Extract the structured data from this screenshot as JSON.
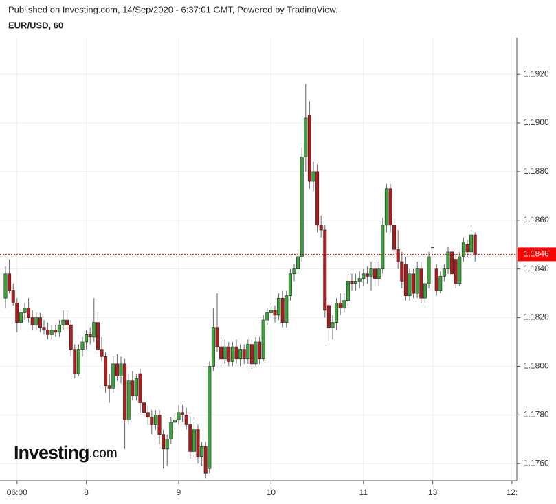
{
  "chart_data": {
    "type": "candlestick",
    "source": "Published on Investing.com, 14/Sep/2020 - 6:37:01 GMT, Powered by TradingView.",
    "title": "EUR/USD, 60",
    "watermark": [
      "Investing",
      ".com"
    ],
    "up_color": "#3aa63a",
    "down_color": "#b01c1c",
    "grid": true,
    "xlim": [
      -1.43,
      132.86
    ],
    "xticks": [
      {
        "value": 3,
        "label": "06:00"
      },
      {
        "value": 21,
        "label": "8"
      },
      {
        "value": 45,
        "label": "9"
      },
      {
        "value": 69,
        "label": "10"
      },
      {
        "value": 93,
        "label": "11"
      },
      {
        "value": 111,
        "label": "13"
      },
      {
        "value": 131.6,
        "label": "12:"
      }
    ],
    "ylim": [
      1.1753,
      1.1935
    ],
    "yticks": [
      {
        "value": 1.176,
        "label": "1.1760"
      },
      {
        "value": 1.178,
        "label": "1.1780"
      },
      {
        "value": 1.18,
        "label": "1.1800"
      },
      {
        "value": 1.182,
        "label": "1.1820"
      },
      {
        "value": 1.184,
        "label": "1.1840"
      },
      {
        "value": 1.186,
        "label": "1.1860"
      },
      {
        "value": 1.188,
        "label": "1.1880"
      },
      {
        "value": 1.19,
        "label": "1.1900"
      },
      {
        "value": 1.192,
        "label": "1.1920"
      }
    ],
    "last_price": {
      "value": 1.1846,
      "label": "1.1846",
      "color": "#ff0000"
    },
    "ohlc": [
      [
        1.1828,
        1.1841,
        1.1824,
        1.1838
      ],
      [
        1.1838,
        1.1844,
        1.183,
        1.1831
      ],
      [
        1.1831,
        1.1834,
        1.1825,
        1.1826
      ],
      [
        1.1826,
        1.1828,
        1.1814,
        1.1818
      ],
      [
        1.1818,
        1.1824,
        1.1815,
        1.1822
      ],
      [
        1.1822,
        1.1826,
        1.1819,
        1.1824
      ],
      [
        1.1824,
        1.1828,
        1.1818,
        1.182
      ],
      [
        1.182,
        1.1823,
        1.1815,
        1.1817
      ],
      [
        1.1817,
        1.1822,
        1.1815,
        1.182
      ],
      [
        1.182,
        1.1822,
        1.1814,
        1.1816
      ],
      [
        1.1816,
        1.1819,
        1.1813,
        1.1815
      ],
      [
        1.1815,
        1.1818,
        1.1811,
        1.1813
      ],
      [
        1.1813,
        1.1817,
        1.1811,
        1.1815
      ],
      [
        1.1815,
        1.1817,
        1.1812,
        1.1814
      ],
      [
        1.1814,
        1.1819,
        1.1812,
        1.1817
      ],
      [
        1.1817,
        1.1823,
        1.1815,
        1.1819
      ],
      [
        1.1819,
        1.1823,
        1.1815,
        1.1817
      ],
      [
        1.1817,
        1.1819,
        1.1804,
        1.1807
      ],
      [
        1.1807,
        1.1809,
        1.1795,
        1.1797
      ],
      [
        1.1797,
        1.1809,
        1.1796,
        1.1807
      ],
      [
        1.1807,
        1.1812,
        1.1804,
        1.181
      ],
      [
        1.181,
        1.1815,
        1.1807,
        1.1813
      ],
      [
        1.1813,
        1.1816,
        1.1809,
        1.1812
      ],
      [
        1.1812,
        1.1828,
        1.181,
        1.1818
      ],
      [
        1.1818,
        1.1822,
        1.1805,
        1.1807
      ],
      [
        1.1807,
        1.1812,
        1.1802,
        1.1804
      ],
      [
        1.1804,
        1.1806,
        1.1789,
        1.1792
      ],
      [
        1.1792,
        1.1797,
        1.1785,
        1.1791
      ],
      [
        1.1791,
        1.1804,
        1.1789,
        1.1801
      ],
      [
        1.1801,
        1.1805,
        1.1794,
        1.1796
      ],
      [
        1.1796,
        1.1804,
        1.1793,
        1.1801
      ],
      [
        1.1801,
        1.1803,
        1.1766,
        1.1778
      ],
      [
        1.1778,
        1.1797,
        1.1776,
        1.1794
      ],
      [
        1.1794,
        1.1798,
        1.1786,
        1.1788
      ],
      [
        1.1788,
        1.1797,
        1.1786,
        1.1795
      ],
      [
        1.1797,
        1.1799,
        1.1781,
        1.1785
      ],
      [
        1.1785,
        1.1788,
        1.1779,
        1.1781
      ],
      [
        1.1781,
        1.1784,
        1.1776,
        1.1779
      ],
      [
        1.1779,
        1.1782,
        1.1772,
        1.1776
      ],
      [
        1.1776,
        1.1782,
        1.1774,
        1.178
      ],
      [
        1.178,
        1.1782,
        1.1768,
        1.1772
      ],
      [
        1.1772,
        1.1774,
        1.1758,
        1.1766
      ],
      [
        1.1766,
        1.1772,
        1.1759,
        1.177
      ],
      [
        1.177,
        1.1779,
        1.1768,
        1.1777
      ],
      [
        1.1777,
        1.1781,
        1.1774,
        1.1778
      ],
      [
        1.1778,
        1.1784,
        1.1776,
        1.1781
      ],
      [
        1.1781,
        1.1784,
        1.1777,
        1.178
      ],
      [
        1.178,
        1.1783,
        1.1774,
        1.1776
      ],
      [
        1.1776,
        1.1779,
        1.1762,
        1.1765
      ],
      [
        1.1765,
        1.1777,
        1.1763,
        1.1774
      ],
      [
        1.1774,
        1.1776,
        1.176,
        1.1763
      ],
      [
        1.1763,
        1.1769,
        1.1759,
        1.1767
      ],
      [
        1.1767,
        1.1769,
        1.1754,
        1.1756
      ],
      [
        1.1758,
        1.1802,
        1.1756,
        1.18
      ],
      [
        1.18,
        1.1824,
        1.1798,
        1.1816
      ],
      [
        1.1816,
        1.183,
        1.1806,
        1.1808
      ],
      [
        1.1808,
        1.1812,
        1.18,
        1.1803
      ],
      [
        1.1803,
        1.1811,
        1.1801,
        1.1808
      ],
      [
        1.1808,
        1.181,
        1.18,
        1.1802
      ],
      [
        1.1802,
        1.181,
        1.18,
        1.1808
      ],
      [
        1.1808,
        1.1811,
        1.1801,
        1.1803
      ],
      [
        1.1803,
        1.1809,
        1.18,
        1.1807
      ],
      [
        1.1807,
        1.1809,
        1.1801,
        1.1803
      ],
      [
        1.1803,
        1.1811,
        1.1801,
        1.1809
      ],
      [
        1.1809,
        1.1811,
        1.1799,
        1.1801
      ],
      [
        1.1801,
        1.1812,
        1.18,
        1.181
      ],
      [
        1.181,
        1.1812,
        1.1801,
        1.1803
      ],
      [
        1.1803,
        1.1821,
        1.1802,
        1.1819
      ],
      [
        1.1819,
        1.1824,
        1.1817,
        1.1822
      ],
      [
        1.1822,
        1.1826,
        1.182,
        1.1823
      ],
      [
        1.1823,
        1.1825,
        1.1818,
        1.1821
      ],
      [
        1.1821,
        1.183,
        1.1819,
        1.1828
      ],
      [
        1.1828,
        1.1831,
        1.1816,
        1.1818
      ],
      [
        1.1818,
        1.1831,
        1.1816,
        1.1829
      ],
      [
        1.1829,
        1.184,
        1.1827,
        1.1838
      ],
      [
        1.1838,
        1.1842,
        1.1835,
        1.184
      ],
      [
        1.184,
        1.1848,
        1.1838,
        1.1845
      ],
      [
        1.1845,
        1.189,
        1.1843,
        1.1886
      ],
      [
        1.1886,
        1.1916,
        1.188,
        1.1902
      ],
      [
        1.1903,
        1.1909,
        1.1873,
        1.1876
      ],
      [
        1.1876,
        1.1884,
        1.1872,
        1.188
      ],
      [
        1.188,
        1.1883,
        1.1855,
        1.1858
      ],
      [
        1.1858,
        1.1862,
        1.1853,
        1.1856
      ],
      [
        1.1856,
        1.1858,
        1.182,
        1.1823
      ],
      [
        1.1825,
        1.1828,
        1.181,
        1.1816
      ],
      [
        1.1816,
        1.1821,
        1.1811,
        1.1818
      ],
      [
        1.1818,
        1.1828,
        1.1815,
        1.1826
      ],
      [
        1.1826,
        1.183,
        1.1821,
        1.1824
      ],
      [
        1.1824,
        1.183,
        1.1822,
        1.1827
      ],
      [
        1.1827,
        1.1838,
        1.1825,
        1.1835
      ],
      [
        1.1835,
        1.1838,
        1.1831,
        1.1834
      ],
      [
        1.1834,
        1.1838,
        1.1831,
        1.1835
      ],
      [
        1.1835,
        1.1839,
        1.1832,
        1.1836
      ],
      [
        1.1836,
        1.184,
        1.1833,
        1.1838
      ],
      [
        1.1838,
        1.1841,
        1.1834,
        1.1837
      ],
      [
        1.1837,
        1.1843,
        1.1831,
        1.184
      ],
      [
        1.184,
        1.1843,
        1.1833,
        1.1836
      ],
      [
        1.1836,
        1.1843,
        1.1833,
        1.184
      ],
      [
        1.184,
        1.1861,
        1.1838,
        1.1858
      ],
      [
        1.1858,
        1.1875,
        1.1855,
        1.1873
      ],
      [
        1.1873,
        1.1875,
        1.1855,
        1.1858
      ],
      [
        1.1858,
        1.1862,
        1.1845,
        1.1848
      ],
      [
        1.1848,
        1.1856,
        1.184,
        1.1843
      ],
      [
        1.1843,
        1.1847,
        1.1832,
        1.1835
      ],
      [
        1.1842,
        1.1845,
        1.1827,
        1.1829
      ],
      [
        1.1829,
        1.184,
        1.1827,
        1.1838
      ],
      [
        1.1838,
        1.184,
        1.1828,
        1.183
      ],
      [
        1.183,
        1.1843,
        1.1828,
        1.184
      ],
      [
        1.184,
        1.1843,
        1.1826,
        1.1828
      ],
      [
        1.1828,
        1.1837,
        1.1826,
        1.1834
      ],
      [
        1.1834,
        1.1847,
        1.1832,
        1.1845
      ],
      [
        1.1849,
        1.1849,
        1.1849,
        1.1849
      ],
      [
        1.184,
        1.1842,
        1.1829,
        1.1831
      ],
      [
        1.1831,
        1.1839,
        1.183,
        1.1837
      ],
      [
        1.1837,
        1.1842,
        1.1835,
        1.184
      ],
      [
        1.184,
        1.1849,
        1.1838,
        1.1847
      ],
      [
        1.1847,
        1.1849,
        1.1836,
        1.1838
      ],
      [
        1.1844,
        1.1846,
        1.1832,
        1.1834
      ],
      [
        1.1834,
        1.1847,
        1.1833,
        1.1845
      ],
      [
        1.1845,
        1.1853,
        1.1843,
        1.1851
      ],
      [
        1.185,
        1.1852,
        1.1845,
        1.1847
      ],
      [
        1.1847,
        1.1856,
        1.1845,
        1.1854
      ],
      [
        1.1854,
        1.1855,
        1.1843,
        1.1846
      ]
    ]
  }
}
